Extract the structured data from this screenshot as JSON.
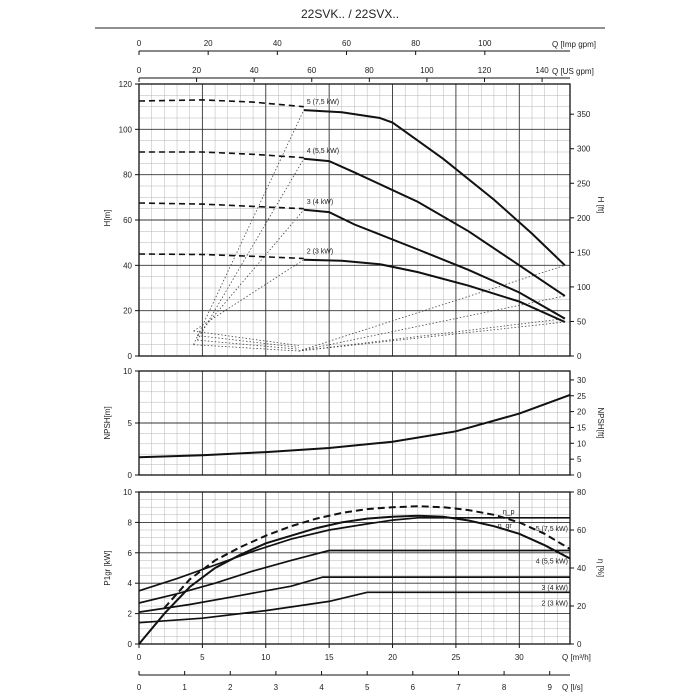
{
  "title": "22SVK.. / 22SVX..",
  "colors": {
    "line": "#111111",
    "grid": "#333333",
    "minor": "#b5b5b5",
    "text": "#222222"
  },
  "chart_data": [
    {
      "type": "line",
      "name": "head",
      "x_unit": "m3/h",
      "xlim": [
        0,
        34
      ],
      "ylim": [
        0,
        120
      ],
      "yticks": [
        0,
        20,
        40,
        60,
        80,
        100,
        120
      ],
      "ylabel": "H[m]",
      "y2label": "H [ft]",
      "y2ticks": [
        0,
        50,
        100,
        150,
        200,
        250,
        300,
        350
      ],
      "top_axis_imp": {
        "label": "Q [Imp gpm]",
        "ticks": [
          0,
          20,
          40,
          60,
          80,
          100
        ]
      },
      "top_axis_us": {
        "label": "Q [US gpm]",
        "ticks": [
          0,
          20,
          40,
          60,
          80,
          100,
          120,
          140
        ]
      },
      "series": [
        {
          "name": "5 (7,5 kW)",
          "label": "5 (7,5 kW)",
          "dashed": [
            [
              0,
              112.5
            ],
            [
              5,
              113
            ],
            [
              9,
              112
            ],
            [
              13,
              110
            ]
          ],
          "solid": [
            [
              13,
              108.5
            ],
            [
              16,
              107.5
            ],
            [
              19,
              105
            ],
            [
              20,
              103
            ],
            [
              24,
              87
            ],
            [
              28,
              69
            ],
            [
              31,
              54
            ],
            [
              33.6,
              40
            ]
          ]
        },
        {
          "name": "4 (5,5 kW)",
          "label": "4 (5,5 kW)",
          "dashed": [
            [
              0,
              90
            ],
            [
              5,
              90
            ],
            [
              9,
              89
            ],
            [
              13,
              87.5
            ]
          ],
          "solid": [
            [
              13,
              87
            ],
            [
              15,
              86
            ],
            [
              17,
              81
            ],
            [
              22,
              68
            ],
            [
              26,
              55
            ],
            [
              30,
              40
            ],
            [
              33.6,
              26.5
            ]
          ]
        },
        {
          "name": "3 (4 kW)",
          "label": "3 (4 kW)",
          "dashed": [
            [
              0,
              67.5
            ],
            [
              5,
              67
            ],
            [
              9,
              66
            ],
            [
              13,
              65
            ]
          ],
          "solid": [
            [
              13,
              64.5
            ],
            [
              15,
              63.5
            ],
            [
              17,
              58
            ],
            [
              22,
              47
            ],
            [
              26,
              38
            ],
            [
              30,
              28
            ],
            [
              33.6,
              16.5
            ]
          ]
        },
        {
          "name": "2 (3 kW)",
          "label": "2 (3 kW)",
          "dashed": [
            [
              0,
              45
            ],
            [
              5,
              44.8
            ],
            [
              9,
              44
            ],
            [
              13,
              43
            ]
          ],
          "solid": [
            [
              13,
              42.5
            ],
            [
              16,
              42
            ],
            [
              19,
              40.5
            ],
            [
              22,
              37
            ],
            [
              26,
              31
            ],
            [
              30,
              24
            ],
            [
              33.6,
              15
            ]
          ]
        }
      ]
    },
    {
      "type": "line",
      "name": "npsh",
      "xlim": [
        0,
        34
      ],
      "ylim": [
        0,
        10
      ],
      "yticks": [
        0,
        5,
        10
      ],
      "ylabel": "NPSH[m]",
      "y2label": "NPSH[ft]",
      "y2ticks": [
        0,
        5,
        10,
        15,
        20,
        25,
        30
      ],
      "values": [
        [
          0,
          1.7
        ],
        [
          5,
          1.9
        ],
        [
          10,
          2.2
        ],
        [
          15,
          2.6
        ],
        [
          20,
          3.2
        ],
        [
          25,
          4.2
        ],
        [
          30,
          5.9
        ],
        [
          34,
          7.7
        ]
      ]
    },
    {
      "type": "line",
      "name": "power-efficiency",
      "xlim": [
        0,
        34
      ],
      "ylim": [
        0,
        10
      ],
      "yticks": [
        0,
        2,
        4,
        6,
        8,
        10
      ],
      "ylabel": "P1gr [kW]",
      "y2label": "η [%]",
      "y2ticks": [
        0,
        20,
        40,
        60,
        80
      ],
      "xticks": [
        0,
        5,
        10,
        15,
        20,
        25,
        30
      ],
      "xlabel": "Q [m³/h]",
      "x_ls": {
        "label": "Q [l/s]",
        "ticks": [
          0,
          1,
          2,
          3,
          4,
          5,
          6,
          7,
          8,
          9
        ]
      },
      "power": [
        {
          "label": "5 (7,5 kW)",
          "values": [
            [
              0,
              3.5
            ],
            [
              3,
              4.3
            ],
            [
              6,
              5.2
            ],
            [
              9,
              6.1
            ],
            [
              12,
              6.9
            ],
            [
              15,
              7.5
            ],
            [
              18,
              7.9
            ],
            [
              20,
              8.15
            ],
            [
              22,
              8.3
            ],
            [
              34,
              8.3
            ]
          ]
        },
        {
          "label": "4 (5,5 kW)",
          "values": [
            [
              0,
              2.7
            ],
            [
              3,
              3.3
            ],
            [
              6,
              4.0
            ],
            [
              9,
              4.8
            ],
            [
              12,
              5.5
            ],
            [
              15,
              6.15
            ],
            [
              34,
              6.15
            ]
          ]
        },
        {
          "label": "3 (4 kW)",
          "values": [
            [
              0,
              2.1
            ],
            [
              4,
              2.6
            ],
            [
              8,
              3.2
            ],
            [
              12,
              3.8
            ],
            [
              14.5,
              4.4
            ],
            [
              34,
              4.4
            ]
          ]
        },
        {
          "label": "2 (3 kW)",
          "values": [
            [
              0,
              1.4
            ],
            [
              5,
              1.7
            ],
            [
              10,
              2.2
            ],
            [
              15,
              2.8
            ],
            [
              18,
              3.4
            ],
            [
              34,
              3.4
            ]
          ]
        }
      ],
      "eta_gr": {
        "label": "η_gr",
        "values": [
          [
            0,
            0
          ],
          [
            2,
            16
          ],
          [
            4,
            30
          ],
          [
            6,
            40
          ],
          [
            8,
            47
          ],
          [
            10,
            53
          ],
          [
            12,
            57
          ],
          [
            14,
            61
          ],
          [
            16,
            64
          ],
          [
            18,
            66
          ],
          [
            20,
            67
          ],
          [
            22,
            67.5
          ],
          [
            24,
            67
          ],
          [
            26,
            65
          ],
          [
            28,
            62
          ],
          [
            30,
            58
          ],
          [
            32,
            52
          ],
          [
            34,
            45
          ]
        ]
      },
      "eta_p": {
        "label": "η_p",
        "values": [
          [
            2,
            19
          ],
          [
            4,
            34
          ],
          [
            6,
            44
          ],
          [
            8,
            51
          ],
          [
            10,
            57
          ],
          [
            12,
            62
          ],
          [
            14,
            66
          ],
          [
            16,
            69
          ],
          [
            18,
            71
          ],
          [
            20,
            72
          ],
          [
            22,
            72.5
          ],
          [
            24,
            72
          ],
          [
            26,
            70.5
          ],
          [
            28,
            68
          ],
          [
            30,
            64
          ],
          [
            32,
            58
          ],
          [
            34,
            50
          ]
        ]
      }
    }
  ]
}
